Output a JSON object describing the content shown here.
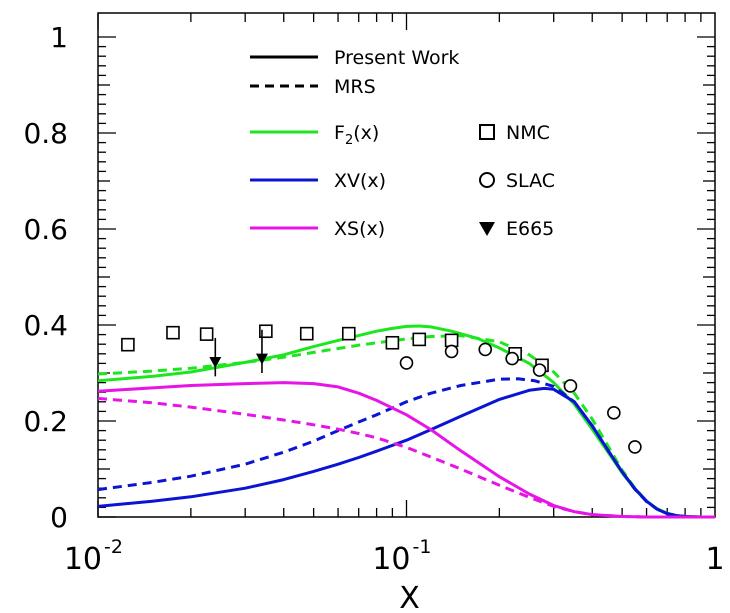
{
  "chart_data": {
    "type": "line",
    "title": "",
    "xlabel": "X",
    "ylabel": "",
    "x_scale": "log",
    "xlim": [
      0.01,
      1
    ],
    "ylim": [
      0,
      1.05
    ],
    "x_tick_labels": [
      {
        "base": "10",
        "exp": "-2",
        "value": 0.01
      },
      {
        "base": "10",
        "exp": "-1",
        "value": 0.1
      },
      {
        "base": "1",
        "exp": "",
        "value": 1
      }
    ],
    "y_tick_labels": [
      "0",
      "0.2",
      "0.4",
      "0.6",
      "0.8",
      "1"
    ],
    "legend_placement": "top-center",
    "legend": {
      "style_entries": [
        {
          "label": "Present Work",
          "style": "solid"
        },
        {
          "label": "MRS",
          "style": "dashed"
        }
      ],
      "line_entries": [
        {
          "label_main": "F",
          "label_sub": "2",
          "label_tail": "(x)",
          "color": "#1ee61e"
        },
        {
          "label_main": "XV(x)",
          "label_sub": "",
          "label_tail": "",
          "color": "#0a14d2"
        },
        {
          "label_main": "XS(x)",
          "label_sub": "",
          "label_tail": "",
          "color": "#e614e6"
        }
      ],
      "marker_entries": [
        {
          "label": "NMC",
          "marker": "square"
        },
        {
          "label": "SLAC",
          "marker": "circle"
        },
        {
          "label": "E665",
          "marker": "triangle-down"
        }
      ]
    },
    "series": [
      {
        "name": "F2(x)",
        "style": "solid",
        "color": "#1ee61e",
        "x": [
          0.01,
          0.015,
          0.02,
          0.03,
          0.04,
          0.05,
          0.06,
          0.07,
          0.08,
          0.09,
          0.1,
          0.11,
          0.12,
          0.14,
          0.17,
          0.2,
          0.25,
          0.3,
          0.35,
          0.4,
          0.45,
          0.5,
          0.55,
          0.6,
          0.65,
          0.7,
          0.75,
          0.8,
          0.9,
          1.0
        ],
        "values": [
          0.284,
          0.293,
          0.302,
          0.322,
          0.338,
          0.355,
          0.368,
          0.378,
          0.387,
          0.393,
          0.397,
          0.398,
          0.396,
          0.387,
          0.372,
          0.352,
          0.32,
          0.28,
          0.235,
          0.183,
          0.135,
          0.092,
          0.058,
          0.033,
          0.017,
          0.008,
          0.003,
          0.001,
          0.0,
          0.0
        ]
      },
      {
        "name": "F2(x) MRS",
        "style": "dashed",
        "color": "#1ee61e",
        "x": [
          0.01,
          0.015,
          0.02,
          0.03,
          0.04,
          0.05,
          0.06,
          0.07,
          0.08,
          0.1,
          0.12,
          0.15,
          0.2,
          0.25,
          0.3,
          0.35,
          0.4,
          0.45,
          0.5,
          0.55,
          0.6,
          0.65,
          0.7,
          0.75,
          0.8,
          0.9,
          1.0
        ],
        "values": [
          0.298,
          0.304,
          0.31,
          0.322,
          0.333,
          0.343,
          0.351,
          0.358,
          0.363,
          0.371,
          0.376,
          0.378,
          0.365,
          0.338,
          0.302,
          0.258,
          0.204,
          0.148,
          0.098,
          0.06,
          0.033,
          0.016,
          0.007,
          0.003,
          0.001,
          0.0,
          0.0
        ]
      },
      {
        "name": "XV(x)",
        "style": "solid",
        "color": "#0a14d2",
        "x": [
          0.01,
          0.015,
          0.02,
          0.03,
          0.04,
          0.05,
          0.06,
          0.07,
          0.08,
          0.1,
          0.12,
          0.15,
          0.2,
          0.25,
          0.28,
          0.3,
          0.35,
          0.4,
          0.45,
          0.5,
          0.55,
          0.6,
          0.65,
          0.7,
          0.75,
          0.8,
          0.9,
          1.0
        ],
        "values": [
          0.022,
          0.033,
          0.042,
          0.06,
          0.078,
          0.095,
          0.11,
          0.124,
          0.137,
          0.16,
          0.182,
          0.21,
          0.245,
          0.264,
          0.268,
          0.266,
          0.24,
          0.19,
          0.139,
          0.094,
          0.059,
          0.033,
          0.016,
          0.007,
          0.003,
          0.001,
          0.0,
          0.0
        ]
      },
      {
        "name": "XV(x) MRS",
        "style": "dashed",
        "color": "#0a14d2",
        "x": [
          0.01,
          0.015,
          0.02,
          0.03,
          0.04,
          0.05,
          0.06,
          0.07,
          0.08,
          0.1,
          0.12,
          0.15,
          0.2,
          0.23,
          0.26,
          0.3,
          0.35,
          0.4,
          0.45,
          0.5,
          0.55,
          0.6,
          0.65,
          0.7,
          0.75,
          0.8,
          0.9,
          1.0
        ],
        "values": [
          0.057,
          0.072,
          0.085,
          0.11,
          0.135,
          0.158,
          0.18,
          0.198,
          0.213,
          0.24,
          0.258,
          0.274,
          0.287,
          0.288,
          0.284,
          0.272,
          0.24,
          0.19,
          0.139,
          0.094,
          0.058,
          0.032,
          0.016,
          0.007,
          0.003,
          0.001,
          0.0,
          0.0
        ]
      },
      {
        "name": "XS(x)",
        "style": "solid",
        "color": "#e614e6",
        "x": [
          0.01,
          0.015,
          0.02,
          0.03,
          0.04,
          0.05,
          0.06,
          0.07,
          0.08,
          0.1,
          0.12,
          0.15,
          0.2,
          0.25,
          0.3,
          0.35,
          0.4,
          0.5,
          0.6,
          0.7,
          0.8,
          1.0
        ],
        "values": [
          0.262,
          0.269,
          0.274,
          0.278,
          0.28,
          0.278,
          0.271,
          0.258,
          0.243,
          0.213,
          0.182,
          0.138,
          0.084,
          0.048,
          0.024,
          0.011,
          0.005,
          0.001,
          0.0,
          0.0,
          0.0,
          0.0
        ]
      },
      {
        "name": "XS(x) MRS",
        "style": "dashed",
        "color": "#e614e6",
        "x": [
          0.01,
          0.015,
          0.02,
          0.03,
          0.04,
          0.05,
          0.06,
          0.07,
          0.08,
          0.1,
          0.12,
          0.15,
          0.2,
          0.25,
          0.3,
          0.35,
          0.4,
          0.5,
          0.6,
          0.7,
          0.8,
          1.0
        ],
        "values": [
          0.247,
          0.238,
          0.229,
          0.214,
          0.202,
          0.192,
          0.183,
          0.174,
          0.165,
          0.145,
          0.125,
          0.1,
          0.066,
          0.041,
          0.022,
          0.011,
          0.005,
          0.001,
          0.0,
          0.0,
          0.0,
          0.0
        ]
      }
    ],
    "markers": {
      "NMC": {
        "marker": "square",
        "x": [
          0.0125,
          0.0175,
          0.0225,
          0.035,
          0.0475,
          0.065,
          0.09,
          0.11,
          0.14,
          0.225,
          0.275
        ],
        "values": [
          0.359,
          0.384,
          0.381,
          0.387,
          0.382,
          0.382,
          0.363,
          0.37,
          0.368,
          0.34,
          0.316
        ]
      },
      "SLAC": {
        "marker": "circle",
        "x": [
          0.1,
          0.14,
          0.18,
          0.22,
          0.27,
          0.34,
          0.47,
          0.55
        ],
        "values": [
          0.321,
          0.345,
          0.349,
          0.33,
          0.306,
          0.273,
          0.217,
          0.146
        ]
      },
      "E665": {
        "marker": "triangle-down",
        "x": [
          0.024,
          0.034
        ],
        "values": [
          0.323,
          0.33
        ],
        "err_up": [
          0.05,
          0.06
        ],
        "err_down": [
          0.03,
          0.03
        ]
      }
    },
    "annotations": []
  }
}
